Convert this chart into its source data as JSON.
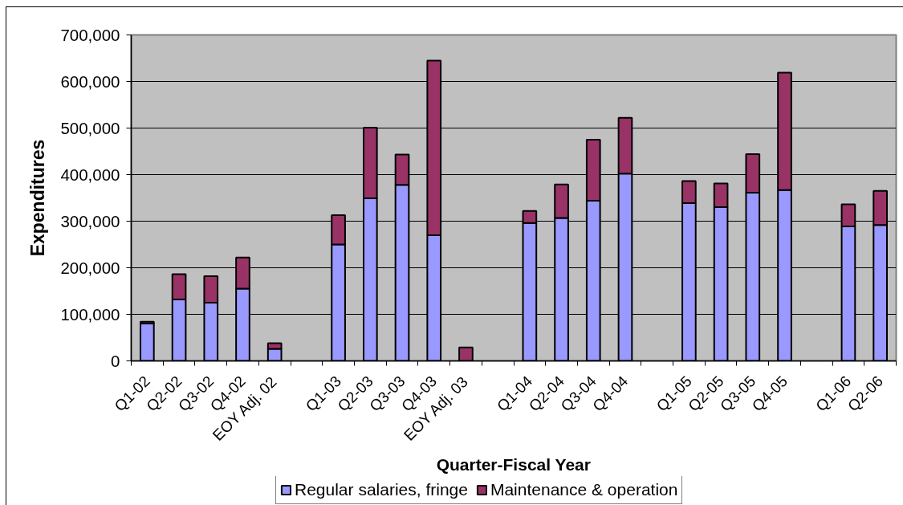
{
  "chart_data": {
    "type": "bar",
    "stacked": true,
    "xlabel": "Quarter-Fiscal Year",
    "ylabel": "Expenditures",
    "categories": [
      "Q1-02",
      "Q2-02",
      "Q3-02",
      "Q4-02",
      "EOY Adj. 02",
      null,
      "Q1-03",
      "Q2-03",
      "Q3-03",
      "Q4-03",
      "EOY Adj. 03",
      null,
      "Q1-04",
      "Q2-04",
      "Q3-04",
      "Q4-04",
      null,
      "Q1-05",
      "Q2-05",
      "Q3-05",
      "Q4-05",
      null,
      "Q1-06",
      "Q2-06"
    ],
    "series": [
      {
        "name": "Regular salaries, fringe",
        "color": "#9999ff",
        "values": [
          80000,
          132000,
          125000,
          155000,
          26000,
          null,
          250000,
          349000,
          378000,
          270000,
          null,
          null,
          296000,
          307000,
          344000,
          402000,
          null,
          339000,
          330000,
          361000,
          367000,
          null,
          289000,
          292000
        ]
      },
      {
        "name": "Maintenance & operation",
        "color": "#993366",
        "values": [
          4000,
          54000,
          57000,
          67000,
          12000,
          null,
          63000,
          152000,
          65000,
          375000,
          29000,
          null,
          26000,
          72000,
          131000,
          120000,
          null,
          47000,
          51000,
          83000,
          252000,
          null,
          47000,
          73000
        ]
      }
    ],
    "ylim": [
      0,
      700000
    ],
    "yticks": [
      0,
      {
        "value": 100000,
        "label": "100,000"
      },
      {
        "value": 200000,
        "label": "200,000"
      },
      {
        "value": 300000,
        "label": "300,000"
      },
      {
        "value": 400000,
        "label": "400,000"
      },
      {
        "value": 500000,
        "label": "500,000"
      },
      {
        "value": 600000,
        "label": "600,000"
      },
      {
        "value": 700000,
        "label": "700,000"
      }
    ],
    "grid": "y",
    "legend": "bottom"
  }
}
